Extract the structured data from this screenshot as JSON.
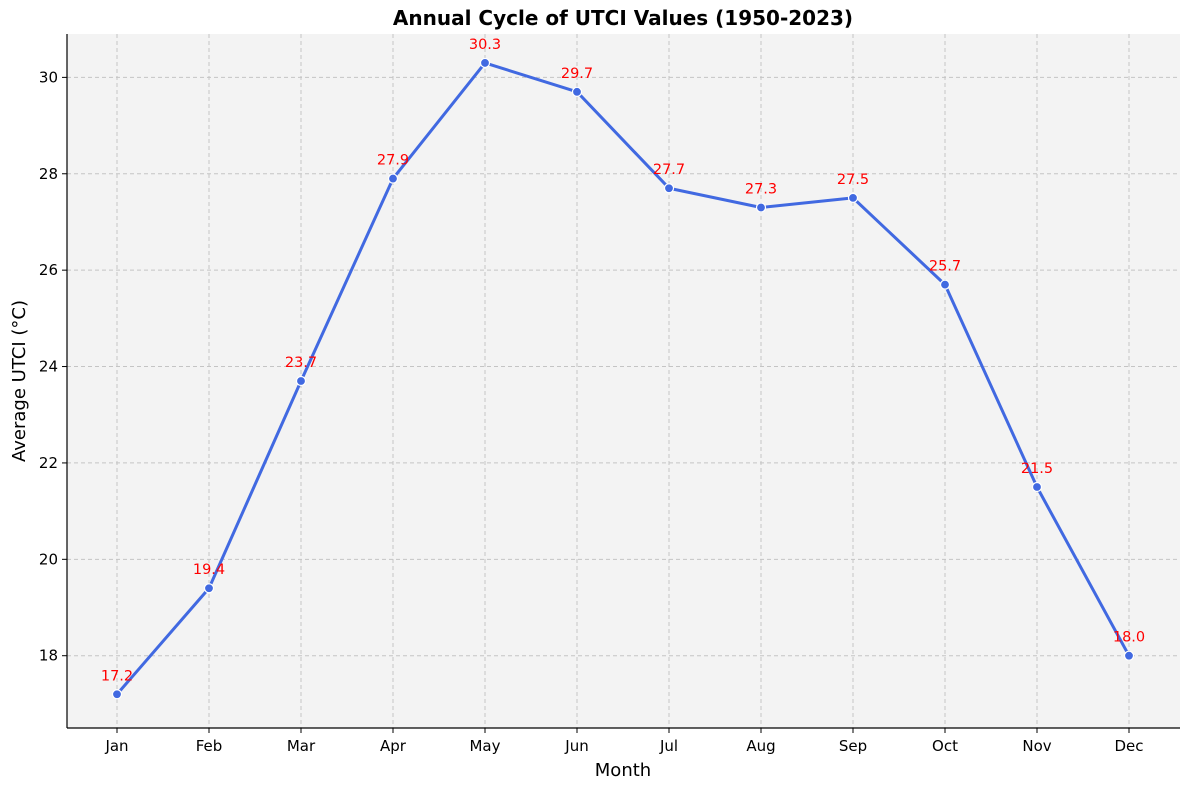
{
  "chart_data": {
    "type": "line",
    "title": "Annual Cycle of UTCI Values (1950-2023)",
    "xlabel": "Month",
    "ylabel": "Average UTCI (°C)",
    "categories": [
      "Jan",
      "Feb",
      "Mar",
      "Apr",
      "May",
      "Jun",
      "Jul",
      "Aug",
      "Sep",
      "Oct",
      "Nov",
      "Dec"
    ],
    "values": [
      17.2,
      19.4,
      23.7,
      27.9,
      30.3,
      29.7,
      27.7,
      27.3,
      27.5,
      25.7,
      21.5,
      18.0
    ],
    "data_labels": [
      "17.2",
      "19.4",
      "23.7",
      "27.9",
      "30.3",
      "29.7",
      "27.7",
      "27.3",
      "27.5",
      "25.7",
      "21.5",
      "18.0"
    ],
    "yticks": [
      18,
      20,
      22,
      24,
      26,
      28,
      30
    ],
    "ylim": [
      16.5,
      30.9
    ],
    "grid": true,
    "colors": {
      "line": "#4169e1",
      "marker_edge": "#ffffff",
      "data_label": "#ff0000",
      "plot_background": "#f3f3f3",
      "grid": "#c4c4c4"
    }
  }
}
